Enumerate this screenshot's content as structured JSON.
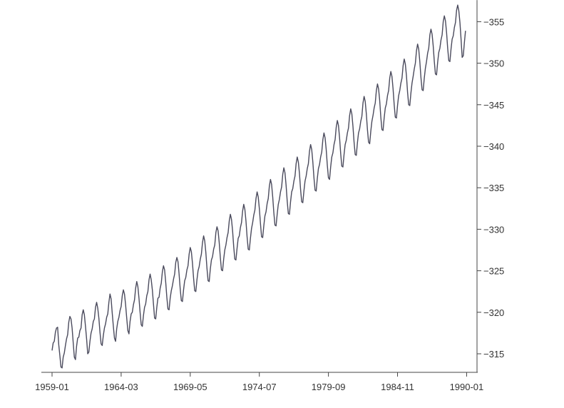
{
  "chart_data": {
    "type": "line",
    "title": "",
    "xlabel": "",
    "ylabel": "",
    "x_start": "1959-01",
    "x_step": "month",
    "xlim": [
      "1959-01",
      "1991-06"
    ],
    "ylim": [
      312.6,
      357.6
    ],
    "x_ticks": [
      "1959-01",
      "1964-03",
      "1969-05",
      "1974-07",
      "1979-09",
      "1984-11",
      "1990-01"
    ],
    "y_ticks": [
      315,
      320,
      325,
      330,
      335,
      340,
      345,
      350,
      355
    ],
    "y_axis_position": "right",
    "grid": false,
    "line_color": "#4a4a5c",
    "series": [
      {
        "values": [
          315.4,
          316.3,
          316.5,
          317.6,
          318.1,
          318.2,
          316.1,
          314.8,
          313.4,
          313.3,
          314.6,
          315.1,
          316.0,
          316.8,
          317.3,
          318.8,
          319.5,
          319.2,
          318.1,
          316.3,
          314.6,
          314.3,
          315.9,
          316.9,
          317.0,
          317.8,
          318.1,
          319.7,
          320.3,
          319.7,
          318.3,
          316.8,
          315.0,
          315.2,
          316.5,
          317.5,
          318.0,
          318.9,
          319.2,
          320.6,
          321.2,
          320.5,
          319.3,
          317.6,
          316.2,
          316.0,
          317.2,
          318.1,
          318.6,
          319.4,
          319.8,
          321.2,
          322.2,
          321.6,
          319.9,
          318.3,
          316.9,
          316.5,
          318.0,
          318.9,
          319.4,
          320.2,
          320.7,
          322.0,
          322.7,
          322.2,
          320.9,
          319.3,
          317.8,
          317.4,
          318.9,
          319.8,
          320.0,
          320.9,
          321.5,
          322.9,
          323.7,
          323.1,
          321.7,
          320.0,
          318.5,
          318.3,
          319.6,
          320.6,
          321.0,
          322.0,
          322.5,
          323.9,
          324.6,
          323.9,
          322.7,
          321.0,
          319.3,
          319.2,
          320.6,
          321.7,
          321.8,
          322.9,
          323.5,
          324.9,
          325.6,
          325.1,
          323.6,
          321.8,
          320.4,
          320.3,
          321.7,
          322.6,
          323.2,
          324.0,
          324.6,
          326.0,
          326.6,
          326.1,
          324.6,
          322.8,
          321.4,
          321.3,
          322.7,
          323.8,
          324.2,
          325.1,
          325.6,
          327.0,
          327.8,
          327.3,
          325.9,
          324.1,
          322.6,
          322.5,
          323.9,
          325.0,
          325.5,
          326.4,
          327.0,
          328.4,
          329.2,
          328.6,
          327.2,
          325.3,
          323.8,
          323.7,
          325.2,
          326.3,
          326.7,
          327.6,
          328.1,
          329.6,
          330.3,
          329.8,
          328.4,
          326.6,
          325.1,
          325.0,
          326.4,
          327.5,
          328.1,
          329.0,
          329.6,
          331.0,
          331.8,
          331.2,
          329.8,
          327.9,
          326.4,
          326.3,
          327.7,
          328.9,
          329.2,
          330.2,
          330.8,
          332.2,
          333.0,
          332.4,
          331.0,
          329.1,
          327.6,
          327.5,
          328.9,
          330.1,
          330.8,
          331.7,
          332.3,
          333.7,
          334.5,
          333.9,
          332.5,
          330.7,
          329.1,
          329.0,
          330.4,
          331.6,
          332.1,
          333.1,
          333.7,
          335.2,
          336.0,
          335.4,
          333.9,
          332.0,
          330.5,
          330.4,
          331.8,
          333.0,
          333.6,
          334.5,
          335.1,
          336.6,
          337.4,
          336.8,
          335.3,
          333.4,
          331.9,
          331.8,
          333.3,
          334.5,
          334.9,
          335.8,
          336.4,
          337.9,
          338.7,
          338.1,
          336.7,
          334.8,
          333.3,
          333.2,
          334.6,
          335.8,
          336.4,
          337.3,
          337.9,
          339.4,
          340.2,
          339.6,
          338.1,
          336.2,
          334.7,
          334.6,
          336.1,
          337.3,
          337.8,
          338.7,
          339.3,
          340.8,
          341.6,
          341.0,
          339.6,
          337.7,
          336.2,
          336.0,
          337.5,
          338.7,
          339.2,
          340.2,
          340.8,
          342.3,
          343.1,
          342.5,
          341.0,
          339.1,
          337.6,
          337.5,
          339.0,
          340.2,
          340.7,
          341.6,
          342.2,
          343.7,
          344.5,
          343.9,
          342.4,
          340.5,
          339.0,
          338.9,
          340.4,
          341.6,
          342.1,
          343.0,
          343.6,
          345.2,
          346.0,
          345.4,
          343.9,
          342.0,
          340.5,
          340.3,
          341.8,
          343.0,
          343.7,
          344.6,
          345.2,
          346.7,
          347.5,
          346.9,
          345.5,
          343.5,
          342.0,
          341.9,
          343.4,
          344.6,
          345.1,
          346.1,
          346.7,
          348.2,
          349.0,
          348.4,
          346.9,
          345.0,
          343.5,
          343.4,
          344.9,
          346.1,
          346.7,
          347.6,
          348.2,
          349.7,
          350.5,
          349.9,
          348.5,
          346.5,
          345.0,
          344.9,
          346.4,
          347.6,
          348.4,
          349.3,
          350.0,
          351.5,
          352.3,
          351.7,
          350.2,
          348.3,
          346.8,
          346.7,
          348.2,
          349.4,
          350.2,
          351.2,
          351.8,
          353.4,
          354.1,
          353.5,
          352.1,
          350.2,
          348.7,
          348.6,
          350.1,
          351.3,
          351.8,
          352.8,
          353.4,
          355.0,
          355.7,
          355.1,
          353.7,
          351.8,
          350.3,
          350.2,
          351.7,
          352.9,
          353.3,
          354.3,
          354.9,
          356.4,
          357.0,
          356.3,
          354.9,
          352.9,
          350.7,
          350.9,
          352.5,
          353.9
        ]
      }
    ]
  }
}
